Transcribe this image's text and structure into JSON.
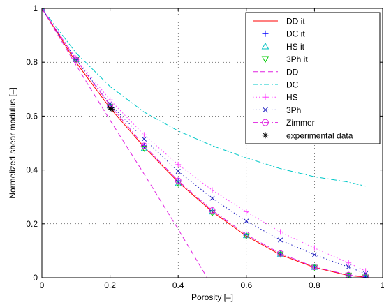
{
  "chart_data": {
    "type": "line",
    "xlabel": "Porosity [–]",
    "ylabel": "Normelized shear modulus [–]",
    "xlim": [
      0,
      1
    ],
    "ylim": [
      0,
      1
    ],
    "xticks": [
      0,
      0.2,
      0.4,
      0.6,
      0.8,
      1
    ],
    "xtick_labels": [
      "0",
      "0.2",
      "0.4",
      "0.6",
      "0.8",
      "1"
    ],
    "yticks": [
      0,
      0.2,
      0.4,
      0.6,
      0.8,
      1
    ],
    "ytick_labels": [
      "0",
      "0.2",
      "0.4",
      "0.6",
      "0.8",
      "1"
    ],
    "grid": true,
    "legend_position": "top-right",
    "series": [
      {
        "name": "DD it",
        "color": "#ff0000",
        "line": "solid",
        "marker": "none",
        "x": [
          0,
          0.1,
          0.2,
          0.3,
          0.4,
          0.5,
          0.6,
          0.7,
          0.8,
          0.9,
          0.95
        ],
        "y": [
          1.0,
          0.8,
          0.63,
          0.485,
          0.355,
          0.245,
          0.155,
          0.085,
          0.038,
          0.008,
          0.002
        ]
      },
      {
        "name": "DC it",
        "color": "#0000ff",
        "line": "none",
        "marker": "plus",
        "x": [
          0,
          0.1,
          0.2,
          0.3,
          0.4,
          0.5,
          0.6,
          0.7,
          0.8,
          0.9,
          0.95
        ],
        "y": [
          1.0,
          0.81,
          0.64,
          0.49,
          0.36,
          0.25,
          0.16,
          0.09,
          0.04,
          0.01,
          0.003
        ]
      },
      {
        "name": "HS it",
        "color": "#00c0c0",
        "line": "none",
        "marker": "triangle-up",
        "x": [
          0,
          0.1,
          0.2,
          0.3,
          0.4,
          0.5,
          0.6,
          0.7,
          0.8,
          0.9,
          0.95
        ],
        "y": [
          1.0,
          0.81,
          0.64,
          0.48,
          0.35,
          0.245,
          0.157,
          0.088,
          0.039,
          0.009,
          0.002
        ]
      },
      {
        "name": "3Ph it",
        "color": "#00cc00",
        "line": "none",
        "marker": "triangle-down",
        "x": [
          0,
          0.1,
          0.2,
          0.3,
          0.4,
          0.5,
          0.6,
          0.7,
          0.8,
          0.9,
          0.95
        ],
        "y": [
          1.0,
          0.81,
          0.635,
          0.48,
          0.35,
          0.24,
          0.155,
          0.087,
          0.038,
          0.009,
          0.002
        ]
      },
      {
        "name": "DD",
        "color": "#e020e0",
        "line": "dashed",
        "marker": "none",
        "x": [
          0,
          0.1,
          0.2,
          0.3,
          0.4,
          0.485
        ],
        "y": [
          1.0,
          0.79,
          0.585,
          0.385,
          0.18,
          0.0
        ]
      },
      {
        "name": "DC",
        "color": "#00c8c8",
        "line": "dashdot",
        "marker": "none",
        "x": [
          0,
          0.1,
          0.2,
          0.3,
          0.4,
          0.5,
          0.6,
          0.7,
          0.8,
          0.9,
          0.95
        ],
        "y": [
          1.0,
          0.835,
          0.71,
          0.615,
          0.545,
          0.49,
          0.445,
          0.405,
          0.375,
          0.355,
          0.34
        ]
      },
      {
        "name": "HS",
        "color": "#ff44ff",
        "line": "dotted",
        "marker": "plus",
        "x": [
          0,
          0.1,
          0.2,
          0.3,
          0.4,
          0.5,
          0.6,
          0.7,
          0.8,
          0.9,
          0.95
        ],
        "y": [
          1.0,
          0.815,
          0.66,
          0.53,
          0.42,
          0.325,
          0.245,
          0.17,
          0.11,
          0.055,
          0.025
        ]
      },
      {
        "name": "3Ph",
        "color": "#2020c0",
        "line": "dotted",
        "marker": "x",
        "x": [
          0,
          0.1,
          0.2,
          0.3,
          0.4,
          0.5,
          0.6,
          0.7,
          0.8,
          0.9,
          0.95
        ],
        "y": [
          1.0,
          0.81,
          0.645,
          0.515,
          0.395,
          0.295,
          0.21,
          0.14,
          0.085,
          0.04,
          0.015
        ]
      },
      {
        "name": "Zimmer",
        "color": "#e020e0",
        "line": "dashdot",
        "marker": "circle",
        "x": [
          0,
          0.1,
          0.2,
          0.3,
          0.4,
          0.5,
          0.6,
          0.7,
          0.8,
          0.9,
          0.95
        ],
        "y": [
          1.0,
          0.81,
          0.64,
          0.49,
          0.36,
          0.25,
          0.16,
          0.09,
          0.04,
          0.01,
          0.003
        ]
      },
      {
        "name": "experimental data",
        "color": "#000000",
        "line": "none",
        "marker": "asterisk",
        "x": [
          0.2,
          0.205
        ],
        "y": [
          0.63,
          0.625
        ]
      }
    ]
  }
}
